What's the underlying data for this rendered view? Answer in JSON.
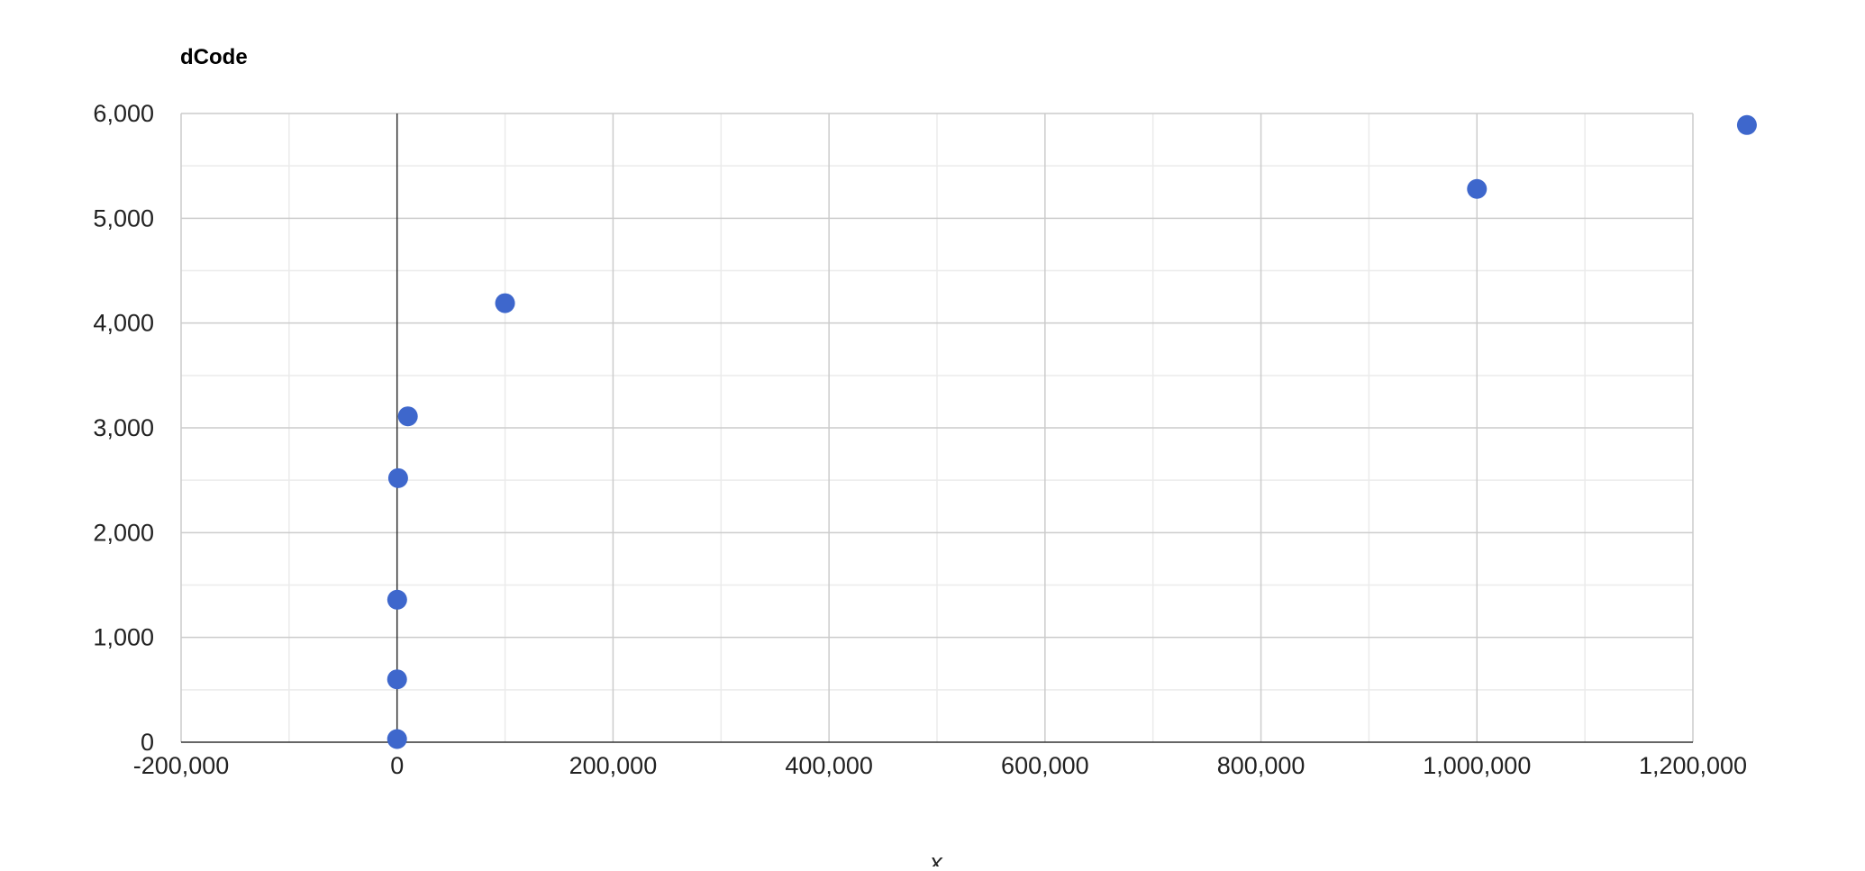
{
  "chart_data": {
    "type": "scatter",
    "title": "dCode",
    "xlabel": "x",
    "ylabel": "",
    "xlim": [
      -200000,
      1200000
    ],
    "ylim": [
      0,
      6000
    ],
    "x_ticks": [
      -200000,
      0,
      200000,
      400000,
      600000,
      800000,
      1000000,
      1200000
    ],
    "x_tick_labels": [
      "-200,000",
      "0",
      "200,000",
      "400,000",
      "600,000",
      "800,000",
      "1,000,000",
      "1,200,000"
    ],
    "y_ticks": [
      0,
      1000,
      2000,
      3000,
      4000,
      5000,
      6000
    ],
    "y_tick_labels": [
      "0",
      "1,000",
      "2,000",
      "3,000",
      "4,000",
      "5,000",
      "6,000"
    ],
    "grid": true,
    "minor_grid": true,
    "legend": "none",
    "series": [
      {
        "x": [
          1,
          10,
          100,
          1000,
          10000,
          100000,
          1000000,
          1250000
        ],
        "y": [
          30,
          600,
          1360,
          2520,
          3110,
          4190,
          5280,
          5890
        ]
      }
    ],
    "colors": {
      "point": "#3E67CC",
      "major_grid": "#CCCCCC",
      "minor_grid": "#EBEBEB",
      "axis_line": "#333333"
    }
  }
}
